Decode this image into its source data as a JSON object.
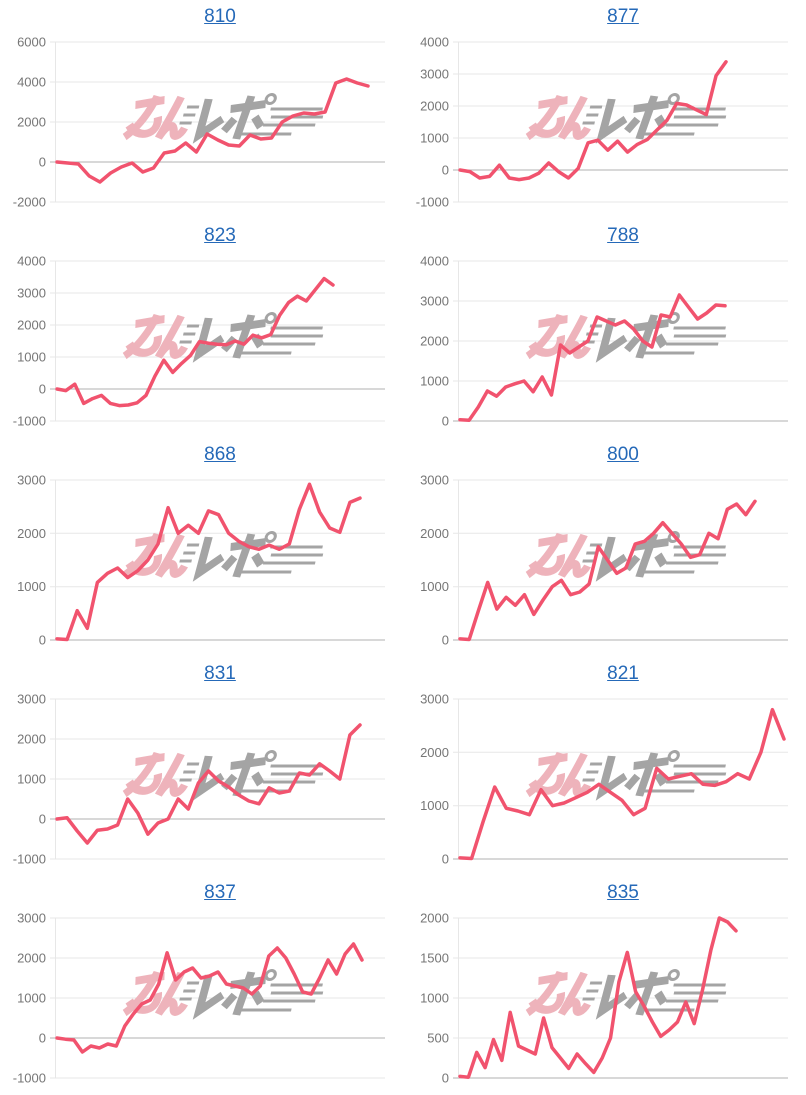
{
  "page": {
    "background": "#ffffff"
  },
  "colors": {
    "line": "#f1536e",
    "grid": "#e7e7e7",
    "zero_line": "#b2b2b2",
    "axis_label": "#767676",
    "title_link": "#2569b8",
    "watermark_pink": "#eeb3bb",
    "watermark_gray": "#a4a4a4"
  },
  "watermark": {
    "text": "みんレポ",
    "text_pink": "みん",
    "text_gray": "レポ"
  },
  "chart_data": [
    {
      "type": "line",
      "title": "810",
      "xlabel": "",
      "ylabel": "",
      "yticks": [
        6000,
        4000,
        2000,
        0,
        -2000
      ],
      "ylim": [
        -2000,
        6000
      ],
      "legend": "none",
      "grid": true,
      "x_end": 368,
      "values": [
        0,
        -50,
        -100,
        -700,
        -1000,
        -550,
        -250,
        -50,
        -500,
        -300,
        450,
        550,
        950,
        500,
        1400,
        1100,
        850,
        800,
        1350,
        1150,
        1200,
        2000,
        2300,
        2450,
        2400,
        2500,
        3950,
        4150,
        3950,
        3800
      ]
    },
    {
      "type": "line",
      "title": "877",
      "xlabel": "",
      "ylabel": "",
      "yticks": [
        4000,
        3000,
        2000,
        1000,
        0,
        -1000
      ],
      "ylim": [
        -1000,
        4000
      ],
      "legend": "none",
      "grid": true,
      "x_end": 323,
      "values": [
        0,
        -50,
        -250,
        -200,
        150,
        -250,
        -300,
        -250,
        -100,
        220,
        -50,
        -250,
        50,
        850,
        930,
        620,
        900,
        560,
        800,
        950,
        1250,
        1550,
        2080,
        2030,
        1880,
        1730,
        2950,
        3380
      ]
    },
    {
      "type": "line",
      "title": "823",
      "xlabel": "",
      "ylabel": "",
      "yticks": [
        4000,
        3000,
        2000,
        1000,
        0,
        -1000
      ],
      "ylim": [
        -1000,
        4000
      ],
      "legend": "none",
      "grid": true,
      "x_end": 333,
      "values": [
        0,
        -50,
        150,
        -450,
        -300,
        -200,
        -450,
        -520,
        -500,
        -430,
        -200,
        400,
        900,
        520,
        800,
        1050,
        1480,
        1430,
        1400,
        1380,
        1500,
        1400,
        1680,
        1600,
        1700,
        2300,
        2700,
        2900,
        2750,
        3100,
        3450,
        3250
      ]
    },
    {
      "type": "line",
      "title": "788",
      "xlabel": "",
      "ylabel": "",
      "yticks": [
        4000,
        3000,
        2000,
        1000,
        0
      ],
      "ylim": [
        0,
        4000
      ],
      "legend": "none",
      "grid": true,
      "x_end": 322,
      "values": [
        30,
        20,
        350,
        750,
        620,
        850,
        930,
        1000,
        730,
        1100,
        650,
        1900,
        1700,
        1850,
        2000,
        2600,
        2500,
        2400,
        2500,
        2300,
        2000,
        1850,
        2650,
        2600,
        3150,
        2850,
        2550,
        2700,
        2900,
        2880
      ]
    },
    {
      "type": "line",
      "title": "868",
      "xlabel": "",
      "ylabel": "",
      "yticks": [
        3000,
        2000,
        1000,
        0
      ],
      "ylim": [
        0,
        3000
      ],
      "legend": "none",
      "grid": true,
      "x_end": 360,
      "values": [
        20,
        10,
        550,
        220,
        1080,
        1250,
        1350,
        1170,
        1300,
        1500,
        1800,
        2480,
        2000,
        2150,
        2000,
        2420,
        2350,
        2000,
        1850,
        1750,
        1700,
        1780,
        1700,
        1800,
        2450,
        2920,
        2400,
        2100,
        2020,
        2580,
        2660
      ]
    },
    {
      "type": "line",
      "title": "800",
      "xlabel": "",
      "ylabel": "",
      "yticks": [
        3000,
        2000,
        1000,
        0
      ],
      "ylim": [
        0,
        3000
      ],
      "legend": "none",
      "grid": true,
      "x_end": 352,
      "values": [
        20,
        10,
        550,
        1080,
        580,
        800,
        650,
        850,
        480,
        750,
        1000,
        1120,
        850,
        900,
        1050,
        1750,
        1500,
        1250,
        1350,
        1800,
        1850,
        2000,
        2200,
        2000,
        1800,
        1550,
        1600,
        2000,
        1900,
        2450,
        2550,
        2350,
        2600
      ]
    },
    {
      "type": "line",
      "title": "831",
      "xlabel": "",
      "ylabel": "",
      "yticks": [
        3000,
        2000,
        1000,
        0,
        -1000
      ],
      "ylim": [
        -1000,
        3000
      ],
      "legend": "none",
      "grid": true,
      "x_end": 360,
      "values": [
        0,
        30,
        -300,
        -600,
        -280,
        -250,
        -150,
        500,
        150,
        -380,
        -100,
        0,
        500,
        250,
        900,
        1200,
        950,
        800,
        600,
        450,
        380,
        780,
        650,
        700,
        1150,
        1100,
        1380,
        1200,
        1000,
        2100,
        2350
      ]
    },
    {
      "type": "line",
      "title": "821",
      "xlabel": "",
      "ylabel": "",
      "yticks": [
        3000,
        2000,
        1000,
        0
      ],
      "ylim": [
        0,
        3000
      ],
      "legend": "none",
      "grid": true,
      "x_end": 381,
      "values": [
        20,
        10,
        700,
        1350,
        950,
        900,
        830,
        1300,
        1000,
        1050,
        1150,
        1250,
        1400,
        1250,
        1100,
        830,
        950,
        1700,
        1500,
        1550,
        1600,
        1400,
        1380,
        1450,
        1600,
        1500,
        2000,
        2800,
        2250
      ]
    },
    {
      "type": "line",
      "title": "837",
      "xlabel": "",
      "ylabel": "",
      "yticks": [
        3000,
        2000,
        1000,
        0,
        -1000
      ],
      "ylim": [
        -1000,
        3000
      ],
      "legend": "none",
      "grid": true,
      "x_end": 362,
      "values": [
        0,
        -30,
        -50,
        -350,
        -200,
        -250,
        -150,
        -200,
        300,
        600,
        850,
        950,
        1350,
        2130,
        1450,
        1650,
        1750,
        1500,
        1550,
        1650,
        1350,
        1300,
        1250,
        1100,
        1300,
        2050,
        2250,
        2000,
        1600,
        1150,
        1100,
        1500,
        1950,
        1600,
        2100,
        2350,
        1950
      ]
    },
    {
      "type": "line",
      "title": "835",
      "xlabel": "",
      "ylabel": "",
      "yticks": [
        2000,
        1500,
        1000,
        500,
        0
      ],
      "ylim": [
        0,
        2000
      ],
      "legend": "none",
      "grid": true,
      "x_end": 333,
      "values": [
        20,
        10,
        320,
        130,
        480,
        220,
        820,
        400,
        350,
        300,
        750,
        380,
        250,
        120,
        300,
        180,
        70,
        250,
        500,
        1200,
        1570,
        1080,
        900,
        700,
        520,
        600,
        700,
        950,
        680,
        1100,
        1600,
        2000,
        1950,
        1840
      ]
    }
  ]
}
